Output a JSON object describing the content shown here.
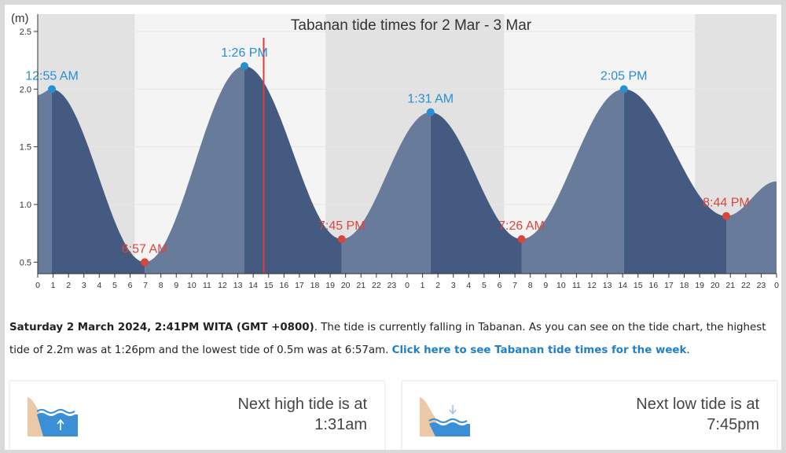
{
  "chart_data": {
    "type": "area",
    "title": "Tabanan tide times for 2 Mar - 3 Mar",
    "ylabel": "(m)",
    "ylim": [
      0.4,
      2.65
    ],
    "yticks": [
      "0.5",
      "1.0",
      "1.5",
      "2.0",
      "2.5"
    ],
    "x_hours": [
      0,
      48
    ],
    "xtick_labels": [
      "0",
      "1",
      "2",
      "3",
      "4",
      "5",
      "6",
      "7",
      "8",
      "9",
      "10",
      "11",
      "12",
      "13",
      "14",
      "15",
      "16",
      "17",
      "18",
      "19",
      "20",
      "21",
      "22",
      "23",
      "0",
      "1",
      "2",
      "3",
      "4",
      "5",
      "6",
      "7",
      "8",
      "9",
      "10",
      "11",
      "12",
      "13",
      "14",
      "15",
      "16",
      "17",
      "18",
      "19",
      "20",
      "21",
      "22",
      "23",
      "0"
    ],
    "night_bands": [
      [
        0,
        6.3
      ],
      [
        18.7,
        30.3
      ],
      [
        42.7,
        48
      ]
    ],
    "current_time_hour": 14.68,
    "extremes": [
      {
        "hour": 0.92,
        "height": 2.0,
        "label": "12:55 AM",
        "kind": "high"
      },
      {
        "hour": 6.95,
        "height": 0.5,
        "label": "6:57 AM",
        "kind": "low"
      },
      {
        "hour": 13.43,
        "height": 2.2,
        "label": "1:26 PM",
        "kind": "high"
      },
      {
        "hour": 19.75,
        "height": 0.7,
        "label": "7:45 PM",
        "kind": "low"
      },
      {
        "hour": 25.52,
        "height": 1.8,
        "label": "1:31 AM",
        "kind": "high"
      },
      {
        "hour": 31.43,
        "height": 0.7,
        "label": "7:26 AM",
        "kind": "low"
      },
      {
        "hour": 38.08,
        "height": 2.0,
        "label": "2:05 PM",
        "kind": "high"
      },
      {
        "hour": 44.73,
        "height": 0.9,
        "label": "8:44 PM",
        "kind": "low"
      }
    ],
    "start_height": 1.95,
    "end_height": 1.2,
    "colors": {
      "rising": "#687b9b",
      "falling": "#445a80",
      "night": "#e2e2e2",
      "day": "#f4f4f4",
      "high_marker": "#2a8fd0",
      "low_marker": "#d9463e",
      "now_line": "#e03a3a"
    }
  },
  "description": {
    "date_text": "Saturday 2 March 2024, 2:41PM WITA (GMT +0800)",
    "body_text": ". The tide is currently falling in Tabanan. As you can see on the tide chart, the highest tide of 2.2m was at 1:26pm and the lowest tide of 0.5m was at 6:57am. ",
    "link_text": "Click here to see Tabanan tide times for the week",
    "end_text": "."
  },
  "cards": {
    "high": {
      "line1": "Next high tide is at",
      "line2": "1:31am",
      "icon": "rising-tide-icon"
    },
    "low": {
      "line1": "Next low tide is at",
      "line2": "7:45pm",
      "icon": "falling-tide-icon"
    }
  }
}
